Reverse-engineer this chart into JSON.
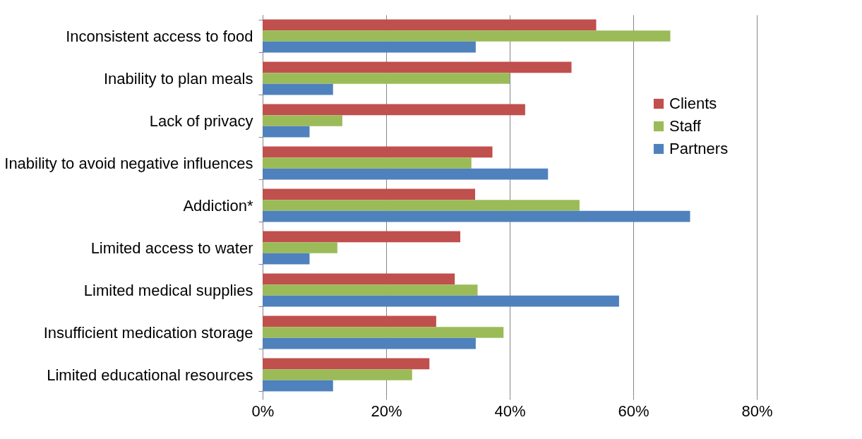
{
  "chart_data": {
    "type": "bar",
    "orientation": "horizontal",
    "categories": [
      "Inconsistent access to food",
      "Inability to plan meals",
      "Lack of privacy",
      "Inability to avoid negative influences",
      "Addiction*",
      "Limited access to water",
      "Limited medical supplies",
      "Insufficient medication storage",
      "Limited educational resources"
    ],
    "series": [
      {
        "name": "Clients",
        "color": "#c0504d",
        "values": [
          54,
          50,
          42.5,
          37.2,
          34.4,
          32,
          31.1,
          28.1,
          27
        ]
      },
      {
        "name": "Staff",
        "color": "#9bbb59",
        "values": [
          66,
          40,
          12.9,
          33.8,
          51.3,
          12.1,
          34.8,
          39,
          24.2
        ]
      },
      {
        "name": "Partners",
        "color": "#4f81bd",
        "values": [
          34.5,
          11.4,
          7.6,
          46.2,
          69.2,
          7.6,
          57.7,
          34.5,
          11.4
        ]
      }
    ],
    "xlim": [
      0,
      80
    ],
    "xticks": [
      {
        "value": 0,
        "label": "0%"
      },
      {
        "value": 20,
        "label": "20%"
      },
      {
        "value": 40,
        "label": "40%"
      },
      {
        "value": 60,
        "label": "60%"
      },
      {
        "value": 80,
        "label": "80%"
      }
    ],
    "grid": "x",
    "legend": "right"
  }
}
